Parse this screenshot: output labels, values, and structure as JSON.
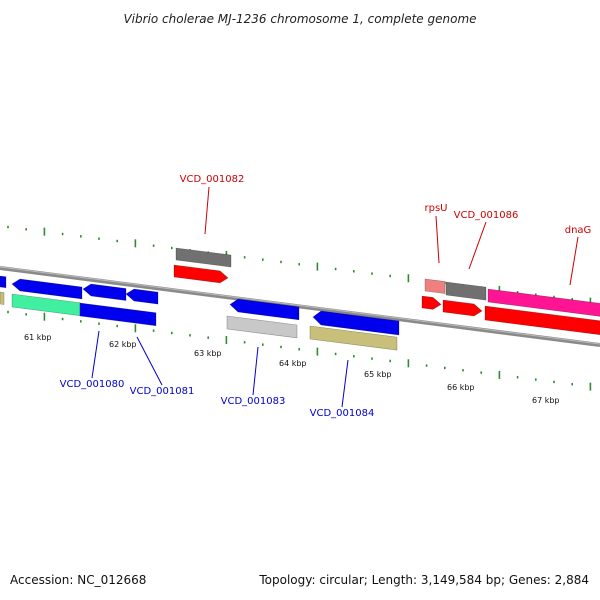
{
  "title": "Vibrio cholerae MJ-1236 chromosome 1, complete genome",
  "footer": {
    "accession": "Accession: NC_012668",
    "summary": "Topology: circular; Length: 3,149,584 bp; Genes: 2,884"
  },
  "colors": {
    "backbone": "#8a8a8a",
    "tick": "#2e8b2e",
    "blue_gene": "#0000ee",
    "red_gene": "#ff0000",
    "grey_gene": "#707070",
    "light_grey_gene": "#c8c8c8",
    "khaki_gene": "#c8c07a",
    "green_gene": "#40f0a0",
    "pink_gene": "#ff1493",
    "salmon_gene": "#f08080",
    "label_red": "#cc0000",
    "label_blue": "#0000cc"
  },
  "scale_labels": [
    "61 kbp",
    "62 kbp",
    "63 kbp",
    "64 kbp",
    "65 kbp",
    "66 kbp",
    "67 kbp"
  ],
  "gene_labels": [
    {
      "text": "VCD_001082",
      "color": "label_red"
    },
    {
      "text": "rpsU",
      "color": "label_red"
    },
    {
      "text": "VCD_001086",
      "color": "label_red"
    },
    {
      "text": "dnaG",
      "color": "label_red"
    },
    {
      "text": "VCD_001080",
      "color": "label_blue"
    },
    {
      "text": "VCD_001081",
      "color": "label_blue"
    },
    {
      "text": "VCD_001083",
      "color": "label_blue"
    },
    {
      "text": "VCD_001084",
      "color": "label_blue"
    }
  ]
}
